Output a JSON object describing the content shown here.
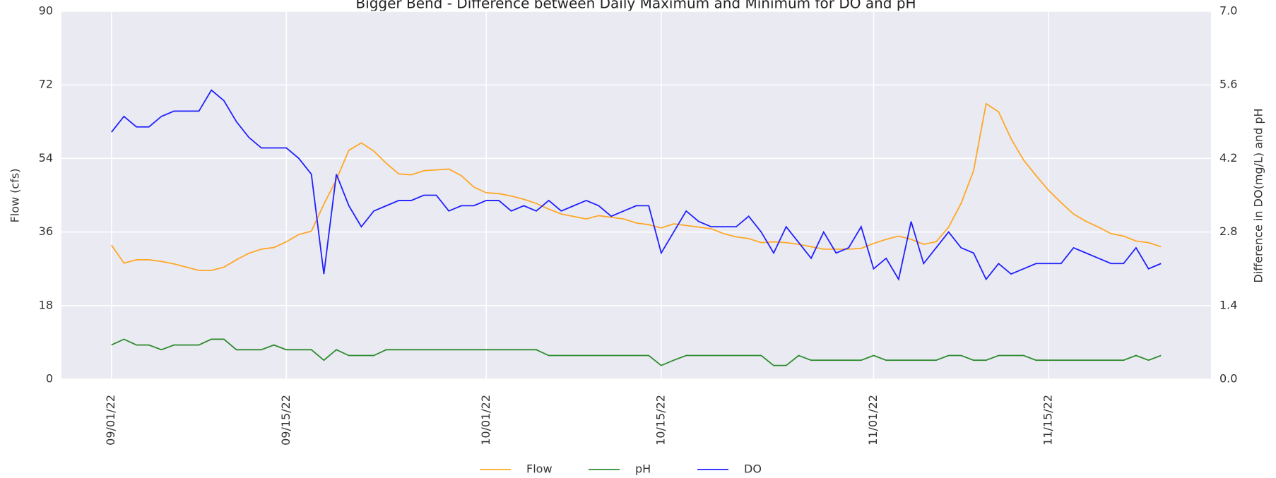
{
  "chart_data": {
    "type": "line",
    "title": "Bigger Bend - Difference between Daily Maximum and Minimum for DO and pH",
    "ylabel": "Flow (cfs)",
    "y2label": "Difference in DO(mg/L) and pH",
    "x": [
      "2022-09-01",
      "2022-09-02",
      "2022-09-03",
      "2022-09-04",
      "2022-09-05",
      "2022-09-06",
      "2022-09-07",
      "2022-09-08",
      "2022-09-09",
      "2022-09-10",
      "2022-09-11",
      "2022-09-12",
      "2022-09-13",
      "2022-09-14",
      "2022-09-15",
      "2022-09-16",
      "2022-09-17",
      "2022-09-18",
      "2022-09-19",
      "2022-09-20",
      "2022-09-21",
      "2022-09-22",
      "2022-09-23",
      "2022-09-24",
      "2022-09-25",
      "2022-09-26",
      "2022-09-27",
      "2022-09-28",
      "2022-09-29",
      "2022-09-30",
      "2022-10-01",
      "2022-10-02",
      "2022-10-03",
      "2022-10-04",
      "2022-10-05",
      "2022-10-06",
      "2022-10-07",
      "2022-10-08",
      "2022-10-09",
      "2022-10-10",
      "2022-10-11",
      "2022-10-12",
      "2022-10-13",
      "2022-10-14",
      "2022-10-15",
      "2022-10-16",
      "2022-10-17",
      "2022-10-18",
      "2022-10-19",
      "2022-10-20",
      "2022-10-21",
      "2022-10-22",
      "2022-10-23",
      "2022-10-24",
      "2022-10-25",
      "2022-10-26",
      "2022-10-27",
      "2022-10-28",
      "2022-10-29",
      "2022-10-30",
      "2022-10-31",
      "2022-11-01",
      "2022-11-02",
      "2022-11-03",
      "2022-11-04",
      "2022-11-05",
      "2022-11-06",
      "2022-11-07",
      "2022-11-08",
      "2022-11-09",
      "2022-11-10",
      "2022-11-11",
      "2022-11-12",
      "2022-11-13",
      "2022-11-14",
      "2022-11-15",
      "2022-11-16",
      "2022-11-17",
      "2022-11-18",
      "2022-11-19",
      "2022-11-20",
      "2022-11-21",
      "2022-11-22",
      "2022-11-23",
      "2022-11-24"
    ],
    "xlim": [
      "2022-08-28",
      "2022-11-28"
    ],
    "xticks": [
      {
        "value": "2022-09-01",
        "label": "09/01/22"
      },
      {
        "value": "2022-09-15",
        "label": "09/15/22"
      },
      {
        "value": "2022-10-01",
        "label": "10/01/22"
      },
      {
        "value": "2022-10-15",
        "label": "10/15/22"
      },
      {
        "value": "2022-11-01",
        "label": "11/01/22"
      },
      {
        "value": "2022-11-15",
        "label": "11/15/22"
      }
    ],
    "ylim": [
      0,
      90
    ],
    "yticks": [
      0,
      18,
      36,
      54,
      72,
      90
    ],
    "y2lim": [
      0,
      7
    ],
    "y2ticks": [
      {
        "value": 0,
        "label": "0.0"
      },
      1.4,
      2.8,
      4.2,
      5.6,
      {
        "value": 7,
        "label": "7.0"
      }
    ],
    "grid": true,
    "legend": "bottom",
    "series": [
      {
        "name": "Flow",
        "color": "#ffa726",
        "axis": "y",
        "values": [
          32.8,
          28.4,
          29.2,
          29.2,
          28.8,
          28.2,
          27.4,
          26.6,
          26.6,
          27.4,
          29.2,
          30.8,
          31.8,
          32.2,
          33.6,
          35.4,
          36.2,
          42.8,
          48.8,
          56,
          57.8,
          55.8,
          52.8,
          50.2,
          50,
          51,
          51.2,
          51.4,
          49.8,
          47,
          45.6,
          45.4,
          44.8,
          44,
          43,
          41.6,
          40.4,
          39.8,
          39.2,
          40,
          39.6,
          39.2,
          38.2,
          37.8,
          37,
          38,
          37.6,
          37.2,
          36.8,
          35.6,
          34.8,
          34.4,
          33.4,
          33.6,
          33.4,
          33,
          32.4,
          31.8,
          31.8,
          31.8,
          32,
          33.2,
          34.2,
          35,
          34.2,
          33,
          33.6,
          37.2,
          43,
          51,
          67.4,
          65.4,
          58.8,
          53.6,
          49.8,
          46.2,
          43.2,
          40.4,
          38.6,
          37.2,
          35.6,
          35,
          33.8,
          33.4,
          32.4
        ]
      },
      {
        "name": "pH",
        "color": "#2e8b2e",
        "axis": "y2",
        "values": [
          0.65,
          0.76,
          0.65,
          0.65,
          0.56,
          0.65,
          0.65,
          0.65,
          0.76,
          0.76,
          0.56,
          0.56,
          0.56,
          0.65,
          0.56,
          0.56,
          0.56,
          0.36,
          0.56,
          0.45,
          0.45,
          0.45,
          0.56,
          0.56,
          0.56,
          0.56,
          0.56,
          0.56,
          0.56,
          0.56,
          0.56,
          0.56,
          0.56,
          0.56,
          0.56,
          0.45,
          0.45,
          0.45,
          0.45,
          0.45,
          0.45,
          0.45,
          0.45,
          0.45,
          0.26,
          0.36,
          0.45,
          0.45,
          0.45,
          0.45,
          0.45,
          0.45,
          0.45,
          0.26,
          0.26,
          0.45,
          0.36,
          0.36,
          0.36,
          0.36,
          0.36,
          0.45,
          0.36,
          0.36,
          0.36,
          0.36,
          0.36,
          0.45,
          0.45,
          0.36,
          0.36,
          0.45,
          0.45,
          0.45,
          0.36,
          0.36,
          0.36,
          0.36,
          0.36,
          0.36,
          0.36,
          0.36,
          0.45,
          0.36,
          0.45
        ]
      },
      {
        "name": "DO",
        "color": "#1f1fff",
        "axis": "y2",
        "values": [
          4.7,
          5.0,
          4.8,
          4.8,
          5.0,
          5.1,
          5.1,
          5.1,
          5.5,
          5.3,
          4.9,
          4.6,
          4.4,
          4.4,
          4.4,
          4.2,
          3.9,
          2.0,
          3.9,
          3.3,
          2.9,
          3.2,
          3.3,
          3.4,
          3.4,
          3.5,
          3.5,
          3.2,
          3.3,
          3.3,
          3.4,
          3.4,
          3.2,
          3.3,
          3.2,
          3.4,
          3.2,
          3.3,
          3.4,
          3.3,
          3.1,
          3.2,
          3.3,
          3.3,
          2.4,
          2.8,
          3.2,
          3.0,
          2.9,
          2.9,
          2.9,
          3.1,
          2.8,
          2.4,
          2.9,
          2.6,
          2.3,
          2.8,
          2.4,
          2.5,
          2.9,
          2.1,
          2.3,
          1.9,
          3.0,
          2.2,
          2.5,
          2.8,
          2.5,
          2.4,
          1.9,
          2.2,
          2.0,
          2.1,
          2.2,
          2.2,
          2.2,
          2.5,
          2.4,
          2.3,
          2.2,
          2.2,
          2.5,
          2.1,
          2.2
        ]
      }
    ]
  }
}
